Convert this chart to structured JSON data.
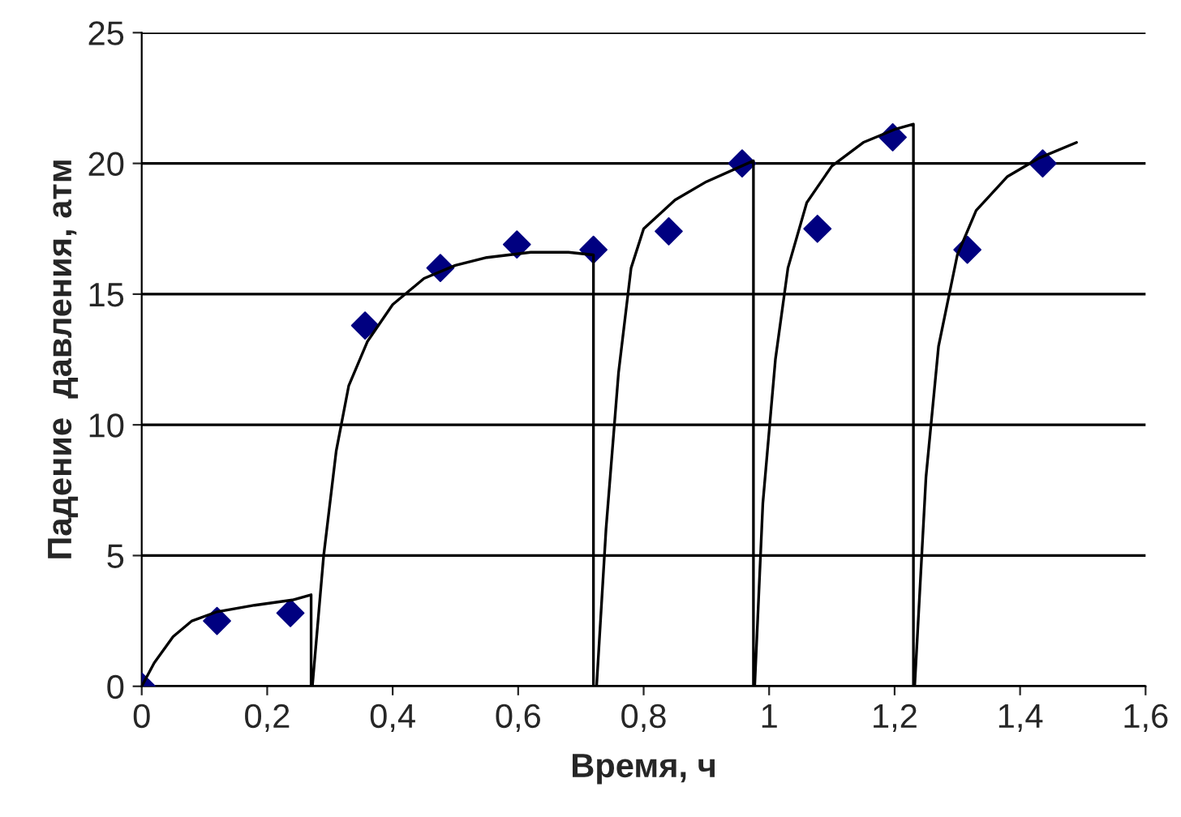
{
  "chart_data": {
    "type": "scatter",
    "xlabel": "Время, ч",
    "ylabel": "Падение  давления, атм",
    "xlim": [
      0,
      1.6
    ],
    "ylim": [
      0,
      25
    ],
    "xticks": [
      0,
      {
        "value": 0.2,
        "label": "0,2"
      },
      {
        "value": 0.4,
        "label": "0,4"
      },
      {
        "value": 0.6,
        "label": "0,6"
      },
      {
        "value": 0.8,
        "label": "0,8"
      },
      1,
      {
        "value": 1.2,
        "label": "1,2"
      },
      {
        "value": 1.4,
        "label": "1,4"
      },
      {
        "value": 1.6,
        "label": "1,6"
      }
    ],
    "yticks": [
      0,
      5,
      10,
      15,
      20,
      25
    ],
    "grid": "y",
    "legend": false,
    "series": [
      {
        "color": "#000080",
        "marker": "diamond",
        "x": [
          0,
          0.12,
          0.237,
          0.356,
          0.476,
          0.598,
          0.72,
          0.84,
          0.957,
          1.077,
          1.197,
          1.316,
          1.436
        ],
        "values": [
          0,
          2.5,
          2.8,
          13.8,
          16.0,
          16.9,
          16.7,
          17.4,
          20.0,
          17.5,
          21.0,
          16.7,
          20.0
        ]
      },
      {
        "type": "line",
        "color": "#000000",
        "marker": "none",
        "line_style": "solid",
        "x": [
          0,
          0.02,
          0.05,
          0.08,
          0.12,
          0.18,
          0.24,
          0.27,
          0.27,
          0.272,
          0.29,
          0.31,
          0.33,
          0.36,
          0.4,
          0.45,
          0.5,
          0.55,
          0.62,
          0.68,
          0.72,
          0.72,
          0.725,
          0.74,
          0.76,
          0.78,
          0.8,
          0.85,
          0.9,
          0.975,
          0.975,
          0.977,
          0.99,
          1.01,
          1.03,
          1.06,
          1.1,
          1.15,
          1.2,
          1.23,
          1.23,
          1.232,
          1.25,
          1.27,
          1.3,
          1.33,
          1.38,
          1.43,
          1.49
        ],
        "values": [
          0,
          0.9,
          1.9,
          2.5,
          2.85,
          3.1,
          3.3,
          3.5,
          0,
          0,
          5,
          9,
          11.5,
          13.2,
          14.6,
          15.6,
          16.1,
          16.4,
          16.6,
          16.6,
          16.5,
          0,
          0,
          6,
          12,
          16,
          17.5,
          18.6,
          19.3,
          20.1,
          0,
          0,
          7,
          12.5,
          16,
          18.5,
          19.9,
          20.8,
          21.3,
          21.5,
          0,
          0,
          8,
          13,
          16.5,
          18.2,
          19.5,
          20.2,
          20.8
        ]
      }
    ]
  }
}
